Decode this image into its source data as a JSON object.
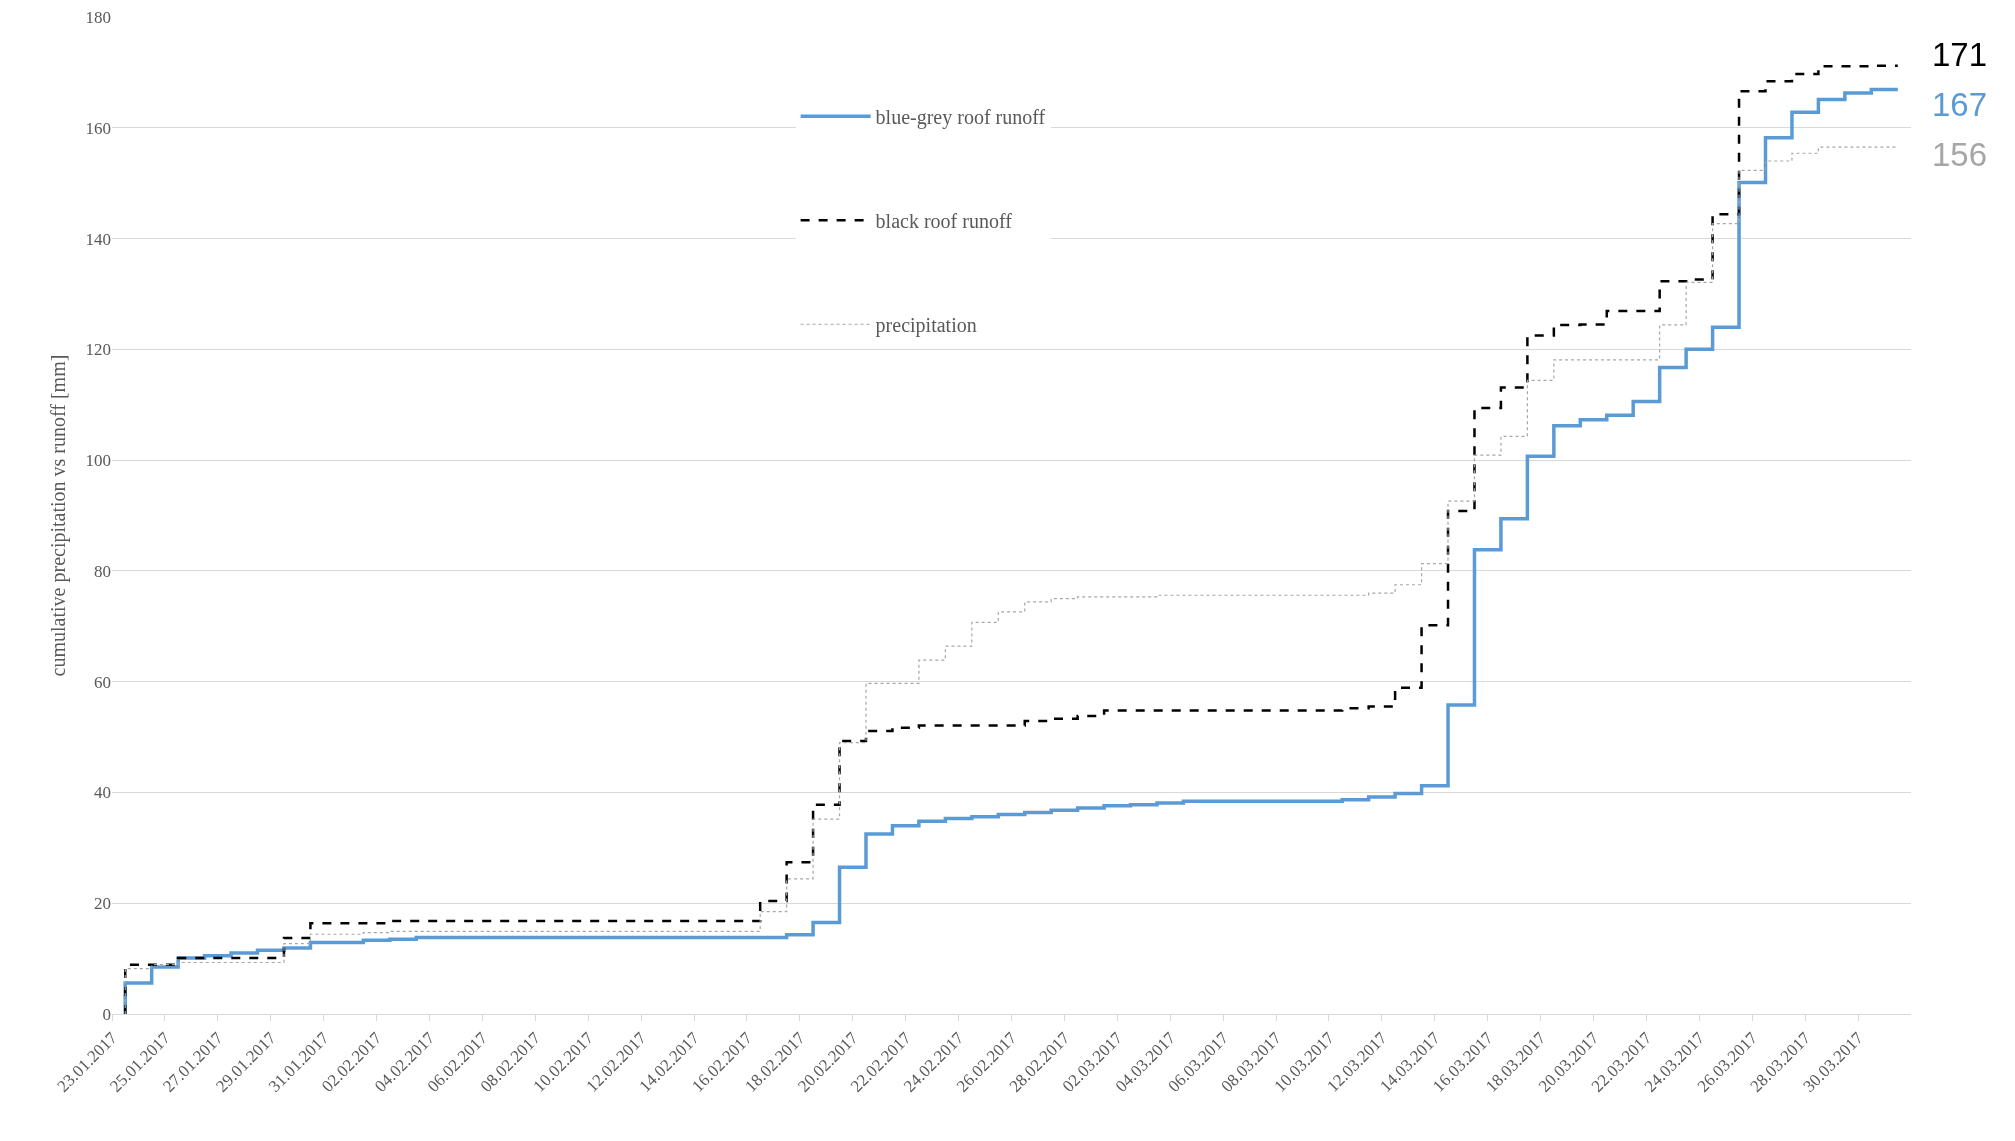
{
  "chart_data": {
    "type": "step",
    "ylabel": "cumulative precipitation vs runoff [mm]",
    "x": [
      "2017-01-23T12:00",
      "2017-01-23T12:00",
      "2017-01-24T12:00",
      "2017-01-25T12:00",
      "2017-01-26T12:00",
      "2017-01-27T12:00",
      "2017-01-28T12:00",
      "2017-01-29T12:00",
      "2017-01-30T12:00",
      "2017-01-31T12:00",
      "2017-02-01T12:00",
      "2017-02-02T12:00",
      "2017-02-03T12:00",
      "2017-02-04T12:00",
      "2017-02-05T12:00",
      "2017-02-06T12:00",
      "2017-02-07T12:00",
      "2017-02-08T12:00",
      "2017-02-09T12:00",
      "2017-02-10T12:00",
      "2017-02-11T12:00",
      "2017-02-12T12:00",
      "2017-02-13T12:00",
      "2017-02-14T12:00",
      "2017-02-15T12:00",
      "2017-02-16T12:00",
      "2017-02-17T12:00",
      "2017-02-18T12:00",
      "2017-02-19T12:00",
      "2017-02-20T12:00",
      "2017-02-21T12:00",
      "2017-02-22T12:00",
      "2017-02-23T12:00",
      "2017-02-24T12:00",
      "2017-02-25T12:00",
      "2017-02-26T12:00",
      "2017-02-27T12:00",
      "2017-02-28T12:00",
      "2017-03-01T12:00",
      "2017-03-02T12:00",
      "2017-03-03T12:00",
      "2017-03-04T12:00",
      "2017-03-05T12:00",
      "2017-03-06T12:00",
      "2017-03-07T12:00",
      "2017-03-08T12:00",
      "2017-03-09T12:00",
      "2017-03-10T12:00",
      "2017-03-11T12:00",
      "2017-03-12T12:00",
      "2017-03-13T12:00",
      "2017-03-14T12:00",
      "2017-03-15T12:00",
      "2017-03-16T12:00",
      "2017-03-17T12:00",
      "2017-03-18T12:00",
      "2017-03-19T12:00",
      "2017-03-20T12:00",
      "2017-03-21T12:00",
      "2017-03-22T12:00",
      "2017-03-23T12:00",
      "2017-03-24T12:00",
      "2017-03-25T12:00",
      "2017-03-26T12:00",
      "2017-03-27T12:00",
      "2017-03-28T12:00",
      "2017-03-29T12:00",
      "2017-03-30T12:00",
      "2017-03-31T12:00"
    ],
    "series": [
      {
        "name": "blue-grey roof runoff",
        "color": "#5b9bd5",
        "line_style": "solid",
        "values": [
          0,
          5.6,
          8.5,
          10.1,
          10.5,
          11,
          11.5,
          11.9,
          12.9,
          12.9,
          13.3,
          13.5,
          13.8,
          13.8,
          13.8,
          13.8,
          13.8,
          13.8,
          13.8,
          13.8,
          13.8,
          13.8,
          13.8,
          13.8,
          13.8,
          13.8,
          14.3,
          16.5,
          26.5,
          32.5,
          34,
          34.8,
          35.3,
          35.6,
          36,
          36.4,
          36.8,
          37.2,
          37.6,
          37.8,
          38.1,
          38.4,
          38.4,
          38.4,
          38.4,
          38.4,
          38.4,
          38.7,
          39.2,
          39.8,
          41.2,
          55.8,
          83.8,
          89.4,
          100.7,
          106.2,
          107.3,
          108.1,
          110.6,
          116.7,
          120,
          124,
          150.1,
          158.2,
          162.8,
          165.1,
          166.3,
          166.9,
          166.9
        ]
      },
      {
        "name": "black roof runoff",
        "color": "#000000",
        "line_style": "dashed",
        "values": [
          0,
          8.9,
          8.9,
          10.1,
          10.1,
          10.1,
          10.1,
          13.7,
          16.4,
          16.4,
          16.4,
          16.8,
          16.8,
          16.8,
          16.8,
          16.8,
          16.8,
          16.8,
          16.8,
          16.8,
          16.8,
          16.8,
          16.8,
          16.8,
          16.8,
          20.4,
          27.4,
          37.8,
          49.3,
          51.1,
          51.7,
          52.1,
          52.1,
          52.1,
          52.1,
          52.9,
          53.3,
          53.8,
          54.8,
          54.8,
          54.8,
          54.8,
          54.8,
          54.8,
          54.8,
          54.8,
          54.8,
          55.2,
          55.5,
          58.9,
          70.2,
          90.8,
          109.4,
          113.1,
          122.5,
          124.4,
          124.5,
          126.9,
          126.9,
          132.3,
          132.6,
          144.4,
          166.6,
          168.4,
          169.7,
          171.1,
          171.1,
          171.2,
          171.2
        ]
      },
      {
        "name": "precipitation",
        "color": "#a6a6a6",
        "line_style": "dotted",
        "values": [
          0,
          8.2,
          8.9,
          9.3,
          9.3,
          9.3,
          9.3,
          12.7,
          14.4,
          14.4,
          14.7,
          14.9,
          14.9,
          14.9,
          14.9,
          14.9,
          14.9,
          14.9,
          14.9,
          14.9,
          14.9,
          14.9,
          14.9,
          14.9,
          14.9,
          18.5,
          24.4,
          35.2,
          49,
          59.7,
          59.7,
          63.9,
          66.4,
          70.7,
          72.6,
          74.4,
          75,
          75.3,
          75.3,
          75.3,
          75.6,
          75.6,
          75.6,
          75.6,
          75.6,
          75.6,
          75.6,
          75.6,
          76,
          77.5,
          81.3,
          92.6,
          100.9,
          104.3,
          114.4,
          118.1,
          118.1,
          118.1,
          118.1,
          124.4,
          132.1,
          142.7,
          152.3,
          154,
          155.4,
          156.5,
          156.5,
          156.5,
          156.5
        ]
      }
    ],
    "annotations": [
      {
        "text": "171",
        "x": "2017-03-31T12:00",
        "y": 171
      },
      {
        "text": "167",
        "x": "2017-03-31T12:00",
        "y": 166.9
      },
      {
        "text": "156",
        "x": "2017-03-31T12:00",
        "y": 156.5
      }
    ],
    "xlim": [
      "2017-01-23",
      "2017-04-01"
    ],
    "xticks": [
      {
        "value": "2017-01-23",
        "label": "23.01.2017"
      },
      {
        "value": "2017-01-25",
        "label": "25.01.2017"
      },
      {
        "value": "2017-01-27",
        "label": "27.01.2017"
      },
      {
        "value": "2017-01-29",
        "label": "29.01.2017"
      },
      {
        "value": "2017-01-31",
        "label": "31.01.2017"
      },
      {
        "value": "2017-02-02",
        "label": "02.02.2017"
      },
      {
        "value": "2017-02-04",
        "label": "04.02.2017"
      },
      {
        "value": "2017-02-06",
        "label": "06.02.2017"
      },
      {
        "value": "2017-02-08",
        "label": "08.02.2017"
      },
      {
        "value": "2017-02-10",
        "label": "10.02.2017"
      },
      {
        "value": "2017-02-12",
        "label": "12.02.2017"
      },
      {
        "value": "2017-02-14",
        "label": "14.02.2017"
      },
      {
        "value": "2017-02-16",
        "label": "16.02.2017"
      },
      {
        "value": "2017-02-18",
        "label": "18.02.2017"
      },
      {
        "value": "2017-02-20",
        "label": "20.02.2017"
      },
      {
        "value": "2017-02-22",
        "label": "22.02.2017"
      },
      {
        "value": "2017-02-24",
        "label": "24.02.2017"
      },
      {
        "value": "2017-02-26",
        "label": "26.02.2017"
      },
      {
        "value": "2017-02-28",
        "label": "28.02.2017"
      },
      {
        "value": "2017-03-02",
        "label": "02.03.2017"
      },
      {
        "value": "2017-03-04",
        "label": "04.03.2017"
      },
      {
        "value": "2017-03-06",
        "label": "06.03.2017"
      },
      {
        "value": "2017-03-08",
        "label": "08.03.2017"
      },
      {
        "value": "2017-03-10",
        "label": "10.03.2017"
      },
      {
        "value": "2017-03-12",
        "label": "12.03.2017"
      },
      {
        "value": "2017-03-14",
        "label": "14.03.2017"
      },
      {
        "value": "2017-03-16",
        "label": "16.03.2017"
      },
      {
        "value": "2017-03-18",
        "label": "18.03.2017"
      },
      {
        "value": "2017-03-20",
        "label": "20.03.2017"
      },
      {
        "value": "2017-03-22",
        "label": "22.03.2017"
      },
      {
        "value": "2017-03-24",
        "label": "24.03.2017"
      },
      {
        "value": "2017-03-26",
        "label": "26.03.2017"
      },
      {
        "value": "2017-03-28",
        "label": "28.03.2017"
      },
      {
        "value": "2017-03-30",
        "label": "30.03.2017"
      }
    ],
    "ylim": [
      0,
      180
    ],
    "yticks": [
      0,
      20,
      40,
      60,
      80,
      100,
      120,
      140,
      160,
      180
    ],
    "grid": "y",
    "legend": "top",
    "marker": "none"
  }
}
